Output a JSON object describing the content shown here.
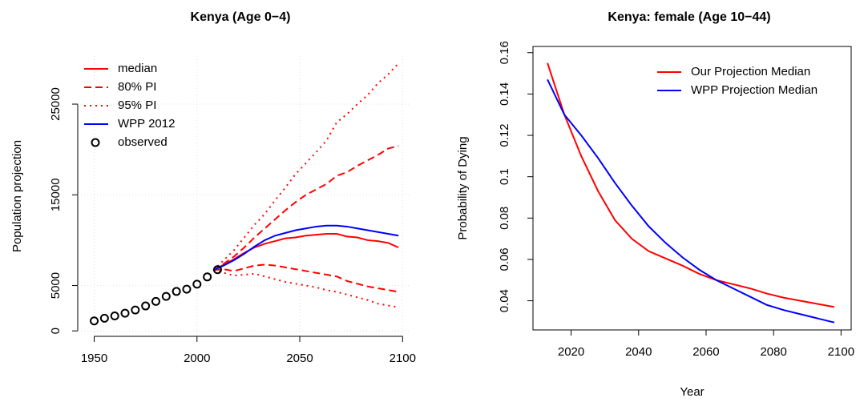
{
  "chart_data": [
    {
      "type": "line",
      "title": "Kenya (Age 0−4)",
      "y_label": "Population projection",
      "xlim": [
        1942,
        2103
      ],
      "ylim": [
        -600,
        30300
      ],
      "xticks": [
        1950,
        2000,
        2050,
        2100
      ],
      "yticks": [
        0,
        5000,
        15000,
        25000
      ],
      "legend": "top-left",
      "grid": true,
      "x": [
        2008,
        2013,
        2018,
        2023,
        2028,
        2033,
        2038,
        2043,
        2048,
        2053,
        2058,
        2063,
        2068,
        2073,
        2078,
        2083,
        2088,
        2093,
        2098
      ],
      "series": [
        {
          "name": "median",
          "color": "#ff0000",
          "style": "solid",
          "values": [
            6700,
            7300,
            7900,
            8600,
            9200,
            9600,
            9900,
            10200,
            10300,
            10500,
            10600,
            10700,
            10700,
            10400,
            10300,
            10000,
            9900,
            9700,
            9200
          ]
        },
        {
          "name": "80% PI",
          "color": "#ff0000",
          "style": "dashed",
          "upper": [
            6700,
            7400,
            8200,
            9200,
            10300,
            11300,
            12300,
            13300,
            14200,
            15000,
            15600,
            16200,
            17100,
            17500,
            18200,
            18800,
            19400,
            20100,
            20400
          ],
          "lower": [
            6700,
            6800,
            6600,
            6900,
            7200,
            7300,
            7200,
            7000,
            6800,
            6600,
            6400,
            6200,
            6000,
            5500,
            5200,
            4900,
            4700,
            4500,
            4300
          ]
        },
        {
          "name": "95% PI",
          "color": "#ff0000",
          "style": "dotted",
          "upper": [
            6700,
            7800,
            8900,
            10300,
            11700,
            12900,
            14400,
            15800,
            17300,
            18500,
            19700,
            21000,
            23000,
            23900,
            25000,
            26000,
            27300,
            28300,
            29500
          ],
          "lower": [
            6700,
            6400,
            6100,
            6200,
            6300,
            6000,
            5700,
            5400,
            5200,
            5000,
            4800,
            4500,
            4300,
            4000,
            3700,
            3400,
            3000,
            2800,
            2600
          ]
        },
        {
          "name": "WPP 2012",
          "color": "#0000ff",
          "style": "solid",
          "values": [
            6700,
            7200,
            7800,
            8500,
            9300,
            10000,
            10500,
            10800,
            11100,
            11300,
            11500,
            11600,
            11600,
            11500,
            11300,
            11100,
            10900,
            10700,
            10500
          ]
        },
        {
          "name": "observed",
          "color": "#000000",
          "style": "points",
          "x": [
            1950,
            1955,
            1960,
            1965,
            1970,
            1975,
            1980,
            1985,
            1990,
            1995,
            2000,
            2005,
            2010
          ],
          "values": [
            1100,
            1400,
            1650,
            1950,
            2300,
            2750,
            3250,
            3800,
            4350,
            4600,
            5150,
            5950,
            6750
          ]
        }
      ]
    },
    {
      "type": "line",
      "title": "Kenya: female (Age 10−44)",
      "x_label": "Year",
      "y_label": "Probability of Dying",
      "xlim": [
        2008.7,
        2103
      ],
      "ylim": [
        0.0259,
        0.163
      ],
      "xticks": [
        2020,
        2040,
        2060,
        2080,
        2100
      ],
      "yticks": [
        0.04,
        0.06,
        0.08,
        0.1,
        0.12,
        0.14,
        0.16
      ],
      "legend": "top-right",
      "grid": false,
      "x": [
        2013,
        2018,
        2023,
        2028,
        2033,
        2038,
        2043,
        2048,
        2053,
        2058,
        2063,
        2068,
        2073,
        2078,
        2083,
        2088,
        2093,
        2098
      ],
      "series": [
        {
          "name": "Our Projection Median",
          "color": "#ff0000",
          "style": "solid",
          "values": [
            0.155,
            0.13,
            0.11,
            0.093,
            0.079,
            0.07,
            0.064,
            0.0605,
            0.057,
            0.053,
            0.05,
            0.048,
            0.046,
            0.0435,
            0.0415,
            0.04,
            0.0385,
            0.037
          ]
        },
        {
          "name": "WPP Projection Median",
          "color": "#0000ff",
          "style": "solid",
          "values": [
            0.147,
            0.13,
            0.12,
            0.109,
            0.097,
            0.086,
            0.076,
            0.068,
            0.061,
            0.055,
            0.05,
            0.046,
            0.042,
            0.038,
            0.0355,
            0.0335,
            0.0315,
            0.0295
          ]
        }
      ]
    }
  ]
}
